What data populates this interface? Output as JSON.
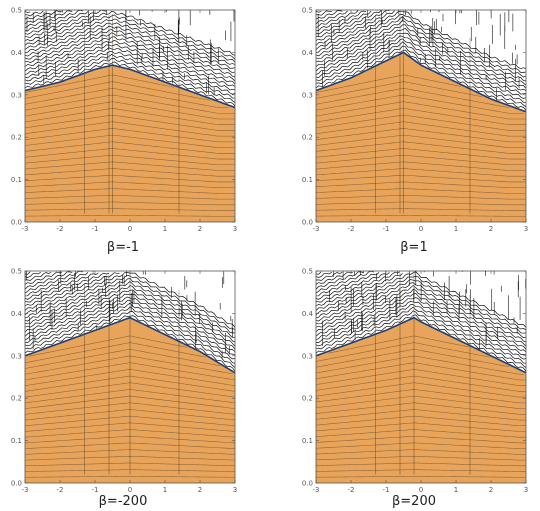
{
  "chart_data": [
    {
      "type": "contour",
      "caption": "β=-1",
      "xlim": [
        -3,
        3
      ],
      "ylim": [
        0,
        0.5
      ],
      "xticks": [
        -3,
        -2,
        -1,
        0,
        1,
        2,
        3
      ],
      "yticks": [
        0.0,
        0.1,
        0.2,
        0.3,
        0.4,
        0.5
      ],
      "fill_color": "#e8a45a",
      "boundary_peak_x": -0.5,
      "boundary": {
        "x": [
          -3,
          -2,
          -1,
          -0.5,
          0,
          1,
          2,
          3
        ],
        "y": [
          0.31,
          0.33,
          0.36,
          0.37,
          0.36,
          0.33,
          0.3,
          0.27
        ]
      }
    },
    {
      "type": "contour",
      "caption": "β=1",
      "xlim": [
        -3,
        3
      ],
      "ylim": [
        0,
        0.5
      ],
      "xticks": [
        -3,
        -2,
        -1,
        0,
        1,
        2,
        3
      ],
      "yticks": [
        0.0,
        0.1,
        0.2,
        0.3,
        0.4,
        0.5
      ],
      "fill_color": "#e8a45a",
      "boundary_peak_x": -0.5,
      "boundary": {
        "x": [
          -3,
          -2,
          -1,
          -0.5,
          0,
          1,
          2,
          3
        ],
        "y": [
          0.31,
          0.34,
          0.38,
          0.4,
          0.37,
          0.33,
          0.29,
          0.26
        ]
      }
    },
    {
      "type": "contour",
      "caption": "β=-200",
      "xlim": [
        -3,
        3
      ],
      "ylim": [
        0,
        0.5
      ],
      "xticks": [
        -3,
        -2,
        -1,
        0,
        1,
        2,
        3
      ],
      "yticks": [
        0.0,
        0.1,
        0.2,
        0.3,
        0.4,
        0.5
      ],
      "fill_color": "#e8a45a",
      "boundary_peak_x": 0,
      "boundary": {
        "x": [
          -3,
          -2,
          -1,
          0,
          1,
          2,
          3
        ],
        "y": [
          0.3,
          0.33,
          0.36,
          0.39,
          0.35,
          0.31,
          0.26
        ]
      }
    },
    {
      "type": "contour",
      "caption": "β=200",
      "xlim": [
        -3,
        3
      ],
      "ylim": [
        0,
        0.5
      ],
      "xticks": [
        -3,
        -2,
        -1,
        0,
        1,
        2,
        3
      ],
      "yticks": [
        0.0,
        0.1,
        0.2,
        0.3,
        0.4,
        0.5
      ],
      "fill_color": "#e8a45a",
      "boundary_peak_x": -0.2,
      "boundary": {
        "x": [
          -3,
          -2,
          -1,
          -0.2,
          0,
          1,
          2,
          3
        ],
        "y": [
          0.3,
          0.33,
          0.36,
          0.39,
          0.38,
          0.34,
          0.3,
          0.26
        ]
      }
    }
  ]
}
